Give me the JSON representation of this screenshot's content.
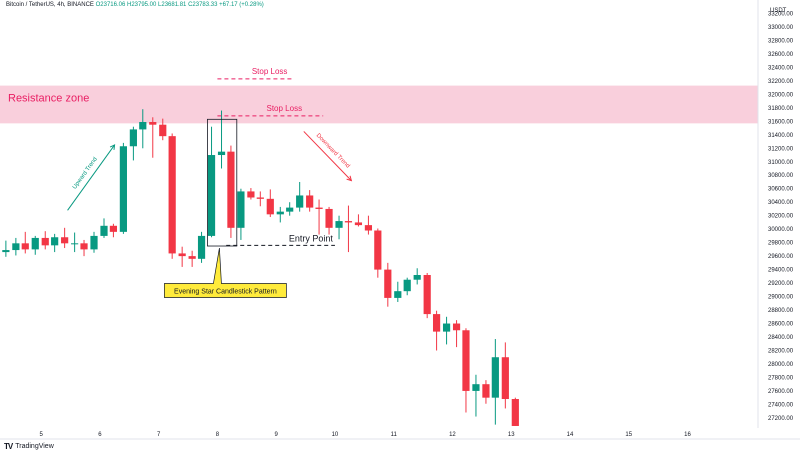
{
  "header": {
    "symbol": "Bitcoin / TetherUS, 4h, BINANCE",
    "open": "O23716.06",
    "high": "H23795.00",
    "low": "L23681.81",
    "close": "C23783.33",
    "change": "+67.17 (+0.28%)"
  },
  "brand": {
    "name": "TradingView",
    "logo": "TV"
  },
  "chart_data": {
    "type": "candlestick",
    "currency": "USDT",
    "x_ticks": [
      "5",
      "6",
      "7",
      "8",
      "9",
      "10",
      "11",
      "12",
      "13",
      "14",
      "15",
      "16"
    ],
    "y_ticks": [
      "27200.00",
      "27400.00",
      "27600.00",
      "27800.00",
      "28000.00",
      "28200.00",
      "28400.00",
      "28600.00",
      "28800.00",
      "29000.00",
      "29200.00",
      "29400.00",
      "29600.00",
      "29800.00",
      "30000.00",
      "30200.00",
      "30400.00",
      "30600.00",
      "30800.00",
      "31000.00",
      "31200.00",
      "31400.00",
      "31600.00",
      "31800.00",
      "32000.00",
      "32200.00",
      "32400.00",
      "32600.00",
      "32800.00",
      "33000.00",
      "33200.00"
    ],
    "ylim": [
      27050,
      33400
    ],
    "xlim": [
      4.3,
      17.2
    ],
    "colors": {
      "up": "#089981",
      "down": "#f23645",
      "zone": "#f9cfdc",
      "zone_text": "#e91e63",
      "stop": "#e91e63",
      "callout": "#ffeb3b"
    },
    "candles": [
      {
        "t": 4.4,
        "o": 29660,
        "h": 29830,
        "l": 29590,
        "c": 29690
      },
      {
        "t": 4.57,
        "o": 29690,
        "h": 29870,
        "l": 29610,
        "c": 29790
      },
      {
        "t": 4.73,
        "o": 29790,
        "h": 29960,
        "l": 29640,
        "c": 29700
      },
      {
        "t": 4.9,
        "o": 29700,
        "h": 29900,
        "l": 29620,
        "c": 29870
      },
      {
        "t": 5.07,
        "o": 29870,
        "h": 29970,
        "l": 29700,
        "c": 29760
      },
      {
        "t": 5.23,
        "o": 29760,
        "h": 29930,
        "l": 29660,
        "c": 29880
      },
      {
        "t": 5.4,
        "o": 29880,
        "h": 30020,
        "l": 29720,
        "c": 29790
      },
      {
        "t": 5.57,
        "o": 29790,
        "h": 29950,
        "l": 29660,
        "c": 29790
      },
      {
        "t": 5.73,
        "o": 29790,
        "h": 29840,
        "l": 29600,
        "c": 29700
      },
      {
        "t": 5.9,
        "o": 29700,
        "h": 29960,
        "l": 29650,
        "c": 29900
      },
      {
        "t": 6.07,
        "o": 29900,
        "h": 30160,
        "l": 29870,
        "c": 30050
      },
      {
        "t": 6.23,
        "o": 30050,
        "h": 30080,
        "l": 29880,
        "c": 29960
      },
      {
        "t": 6.4,
        "o": 29960,
        "h": 31280,
        "l": 29930,
        "c": 31230
      },
      {
        "t": 6.57,
        "o": 31230,
        "h": 31520,
        "l": 31020,
        "c": 31480
      },
      {
        "t": 6.73,
        "o": 31480,
        "h": 31780,
        "l": 31200,
        "c": 31590
      },
      {
        "t": 6.9,
        "o": 31590,
        "h": 31660,
        "l": 31060,
        "c": 31550
      },
      {
        "t": 7.07,
        "o": 31550,
        "h": 31640,
        "l": 31320,
        "c": 31380
      },
      {
        "t": 7.23,
        "o": 31380,
        "h": 31420,
        "l": 29560,
        "c": 29640
      },
      {
        "t": 7.4,
        "o": 29640,
        "h": 29740,
        "l": 29440,
        "c": 29600
      },
      {
        "t": 7.57,
        "o": 29600,
        "h": 29680,
        "l": 29440,
        "c": 29560
      },
      {
        "t": 7.73,
        "o": 29560,
        "h": 29960,
        "l": 29500,
        "c": 29900
      },
      {
        "t": 7.9,
        "o": 29900,
        "h": 31520,
        "l": 29880,
        "c": 31100
      },
      {
        "t": 8.07,
        "o": 31100,
        "h": 31760,
        "l": 30900,
        "c": 31150
      },
      {
        "t": 8.23,
        "o": 31150,
        "h": 31240,
        "l": 29870,
        "c": 30020
      },
      {
        "t": 8.4,
        "o": 30020,
        "h": 30600,
        "l": 29840,
        "c": 30560
      },
      {
        "t": 8.57,
        "o": 30560,
        "h": 30610,
        "l": 30440,
        "c": 30470
      },
      {
        "t": 8.73,
        "o": 30470,
        "h": 30560,
        "l": 30340,
        "c": 30450
      },
      {
        "t": 8.9,
        "o": 30450,
        "h": 30590,
        "l": 30180,
        "c": 30220
      },
      {
        "t": 9.07,
        "o": 30220,
        "h": 30330,
        "l": 30100,
        "c": 30260
      },
      {
        "t": 9.23,
        "o": 30260,
        "h": 30400,
        "l": 30200,
        "c": 30320
      },
      {
        "t": 9.4,
        "o": 30320,
        "h": 30700,
        "l": 30260,
        "c": 30500
      },
      {
        "t": 9.57,
        "o": 30500,
        "h": 30580,
        "l": 30260,
        "c": 30320
      },
      {
        "t": 9.73,
        "o": 30320,
        "h": 30440,
        "l": 29920,
        "c": 30300
      },
      {
        "t": 9.9,
        "o": 30300,
        "h": 30330,
        "l": 29920,
        "c": 30020
      },
      {
        "t": 10.07,
        "o": 30020,
        "h": 30200,
        "l": 29850,
        "c": 30120
      },
      {
        "t": 10.23,
        "o": 30120,
        "h": 30350,
        "l": 29660,
        "c": 30100
      },
      {
        "t": 10.4,
        "o": 30100,
        "h": 30220,
        "l": 30040,
        "c": 30060
      },
      {
        "t": 10.57,
        "o": 30060,
        "h": 30200,
        "l": 29920,
        "c": 29980
      },
      {
        "t": 10.73,
        "o": 29980,
        "h": 30010,
        "l": 29280,
        "c": 29400
      },
      {
        "t": 10.9,
        "o": 29400,
        "h": 29500,
        "l": 28850,
        "c": 28980
      },
      {
        "t": 11.07,
        "o": 28980,
        "h": 29220,
        "l": 28920,
        "c": 29080
      },
      {
        "t": 11.23,
        "o": 29080,
        "h": 29280,
        "l": 29020,
        "c": 29250
      },
      {
        "t": 11.4,
        "o": 29250,
        "h": 29420,
        "l": 29180,
        "c": 29320
      },
      {
        "t": 11.57,
        "o": 29320,
        "h": 29350,
        "l": 28680,
        "c": 28740
      },
      {
        "t": 11.73,
        "o": 28740,
        "h": 28790,
        "l": 28200,
        "c": 28480
      },
      {
        "t": 11.9,
        "o": 28480,
        "h": 28700,
        "l": 28290,
        "c": 28600
      },
      {
        "t": 12.07,
        "o": 28600,
        "h": 28650,
        "l": 28250,
        "c": 28500
      },
      {
        "t": 12.23,
        "o": 28500,
        "h": 28530,
        "l": 27280,
        "c": 27600
      },
      {
        "t": 12.4,
        "o": 27600,
        "h": 27840,
        "l": 27220,
        "c": 27700
      },
      {
        "t": 12.57,
        "o": 27700,
        "h": 27760,
        "l": 27410,
        "c": 27500
      },
      {
        "t": 12.73,
        "o": 27500,
        "h": 28370,
        "l": 27100,
        "c": 28100
      },
      {
        "t": 12.9,
        "o": 28100,
        "h": 28320,
        "l": 27340,
        "c": 27480
      },
      {
        "t": 13.07,
        "o": 27480,
        "h": 27500,
        "l": 27080,
        "c": 27080
      }
    ],
    "annotations": {
      "resistance": {
        "label": "Resistance zone",
        "low": 31570,
        "high": 32130
      },
      "stop_loss": [
        {
          "label": "Stop Loss",
          "price": 32230,
          "x_from": 8.0,
          "x_to": 9.3
        },
        {
          "label": "Stop Loss",
          "price": 31680,
          "x_from": 8.0,
          "x_to": 9.8
        }
      ],
      "entry": {
        "label": "Entry Point",
        "price": 29760,
        "x_from": 8.15,
        "x_to": 10.0
      },
      "pattern_box": {
        "x_from": 7.83,
        "x_to": 8.33,
        "low": 29750,
        "high": 31630
      },
      "callout": {
        "label": "Evening Star Candlestick Pattern",
        "x": 8.0,
        "price": 29090
      },
      "trend_up": {
        "label": "Upward Trend",
        "x1": 5.45,
        "p1": 30280,
        "x2": 6.25,
        "p2": 31250
      },
      "trend_down": {
        "label": "Downward Trend",
        "x1": 9.47,
        "p1": 31450,
        "x2": 10.28,
        "p2": 30720
      }
    }
  }
}
